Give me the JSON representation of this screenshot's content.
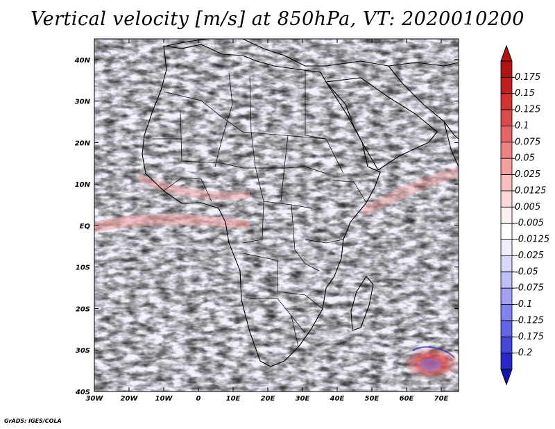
{
  "title": "Vertical velocity [m/s] at 850hPa, VT: 2020010200",
  "credit": "GrADS: IGES/COLA",
  "map": {
    "lon_range": [
      -30,
      75
    ],
    "lat_range": [
      -40,
      45
    ],
    "lon_ticks": [
      {
        "value": -30,
        "label": "30W"
      },
      {
        "value": -20,
        "label": "20W"
      },
      {
        "value": -10,
        "label": "10W"
      },
      {
        "value": 0,
        "label": "0"
      },
      {
        "value": 10,
        "label": "10E"
      },
      {
        "value": 20,
        "label": "20E"
      },
      {
        "value": 30,
        "label": "30E"
      },
      {
        "value": 40,
        "label": "40E"
      },
      {
        "value": 50,
        "label": "50E"
      },
      {
        "value": 60,
        "label": "60E"
      },
      {
        "value": 70,
        "label": "70E"
      }
    ],
    "lat_ticks": [
      {
        "value": 40,
        "label": "40N"
      },
      {
        "value": 30,
        "label": "30N"
      },
      {
        "value": 20,
        "label": "20N"
      },
      {
        "value": 10,
        "label": "10N"
      },
      {
        "value": 0,
        "label": "EQ"
      },
      {
        "value": -10,
        "label": "10S"
      },
      {
        "value": -20,
        "label": "20S"
      },
      {
        "value": -30,
        "label": "30S"
      },
      {
        "value": -40,
        "label": "40S"
      }
    ]
  },
  "colorbar": {
    "levels": [
      {
        "label": "0.175",
        "color": "#c21e1e"
      },
      {
        "label": "0.15",
        "color": "#d23232"
      },
      {
        "label": "0.125",
        "color": "#dc4b4b"
      },
      {
        "label": "0.1",
        "color": "#e66464"
      },
      {
        "label": "0.075",
        "color": "#ee8282"
      },
      {
        "label": "0.05",
        "color": "#f4a0a0"
      },
      {
        "label": "0.025",
        "color": "#f8bebe"
      },
      {
        "label": "0.0125",
        "color": "#fbd8d8"
      },
      {
        "label": "0.005",
        "color": "#fdeeee"
      },
      {
        "label": "-0.005",
        "color": "#ffffff"
      },
      {
        "label": "-0.0125",
        "color": "#eeeefd"
      },
      {
        "label": "-0.025",
        "color": "#d8d8fb"
      },
      {
        "label": "-0.05",
        "color": "#bebef8"
      },
      {
        "label": "-0.075",
        "color": "#a0a0f4"
      },
      {
        "label": "-0.1",
        "color": "#8282ee"
      },
      {
        "label": "-0.125",
        "color": "#6464e6"
      },
      {
        "label": "-0.175",
        "color": "#4646d8"
      },
      {
        "label": "-0.2",
        "color": "#2828c8"
      }
    ],
    "top_color": "#b01414",
    "bottom_color": "#1414b4"
  }
}
